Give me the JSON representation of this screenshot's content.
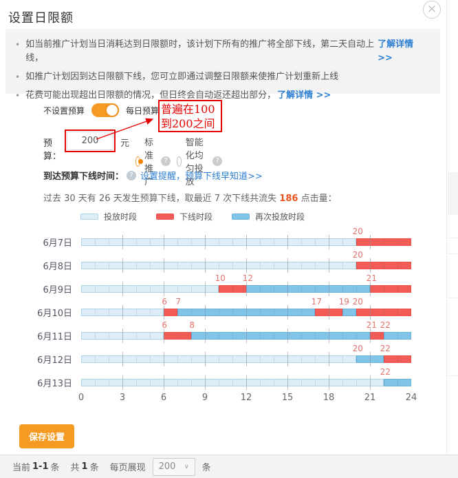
{
  "dialog": {
    "title": "设置日限额"
  },
  "close": {
    "glyph": "×"
  },
  "notice": {
    "items": [
      {
        "text": "如当前推广计划当日消耗达到日限额时，该计划下所有的推广将全部下线，第二天自动上线，",
        "link": "了解详情 >>"
      },
      {
        "text": "如推广计划因到达日限额下线，您可立即通过调整日限额来使推广计划重新上线",
        "link": ""
      },
      {
        "text": "花费可能出现超出日限额的情况，但日终会自动返还超出部分，",
        "link": "了解详情 >>"
      }
    ]
  },
  "budget_form": {
    "toggle_left_label": "不设置预算",
    "toggle_right_label": "每日预算",
    "budget_label": "预算：",
    "budget_value": "200",
    "budget_unit": "元",
    "radio_standard": "标准推广",
    "radio_smooth": "智能化均匀投放",
    "help_glyph": "?"
  },
  "annotation": {
    "line1": "普遍在100",
    "line2": "到200之间",
    "color": "#e60000"
  },
  "offline_row": {
    "label": "到达预算下线时间：",
    "help_glyph": "?",
    "link": "设置提醒，预算下线早知道>>"
  },
  "stats_row": {
    "before": "过去 30 天有 26 天发生预算下线，取最近 7 次下线共流失 ",
    "count": "186",
    "after": " 点击量："
  },
  "legend": [
    {
      "label": "投放时段",
      "type": "on"
    },
    {
      "label": "下线时段",
      "type": "off"
    },
    {
      "label": "再次投放时段",
      "type": "resume"
    }
  ],
  "chart_data": {
    "type": "timeline-bar",
    "x_axis": {
      "min": 0,
      "max": 24,
      "ticks": [
        0,
        3,
        6,
        9,
        12,
        15,
        18,
        21,
        24
      ],
      "unit": "hour"
    },
    "palette": {
      "on": {
        "fill": "#ddeef8",
        "border": "#aed3e6"
      },
      "off": {
        "fill": "#f15c56",
        "border": "#ee4f49"
      },
      "resume": {
        "fill": "#82c4e7",
        "border": "#69b4dc"
      }
    },
    "mark_label_color": "#e4736c",
    "rows": [
      {
        "date": "6月7日",
        "segments": [
          {
            "start": 0,
            "end": 20,
            "type": "on"
          },
          {
            "start": 20,
            "end": 24,
            "type": "off"
          }
        ],
        "marks": [
          20
        ]
      },
      {
        "date": "6月8日",
        "segments": [
          {
            "start": 0,
            "end": 20,
            "type": "on"
          },
          {
            "start": 20,
            "end": 24,
            "type": "off"
          }
        ],
        "marks": [
          20
        ]
      },
      {
        "date": "6月9日",
        "segments": [
          {
            "start": 0,
            "end": 10,
            "type": "on"
          },
          {
            "start": 10,
            "end": 12,
            "type": "off"
          },
          {
            "start": 12,
            "end": 21,
            "type": "resume"
          },
          {
            "start": 21,
            "end": 24,
            "type": "off"
          }
        ],
        "marks": [
          10,
          12,
          21
        ]
      },
      {
        "date": "6月10日",
        "segments": [
          {
            "start": 0,
            "end": 6,
            "type": "on"
          },
          {
            "start": 6,
            "end": 7,
            "type": "off"
          },
          {
            "start": 7,
            "end": 17,
            "type": "resume"
          },
          {
            "start": 17,
            "end": 19,
            "type": "off"
          },
          {
            "start": 19,
            "end": 20,
            "type": "resume"
          },
          {
            "start": 20,
            "end": 24,
            "type": "off"
          }
        ],
        "marks": [
          6,
          7,
          17,
          19,
          20
        ]
      },
      {
        "date": "6月11日",
        "segments": [
          {
            "start": 0,
            "end": 6,
            "type": "on"
          },
          {
            "start": 6,
            "end": 8,
            "type": "off"
          },
          {
            "start": 8,
            "end": 21,
            "type": "resume"
          },
          {
            "start": 21,
            "end": 22,
            "type": "off"
          },
          {
            "start": 22,
            "end": 24,
            "type": "resume"
          }
        ],
        "marks": [
          6,
          8,
          21,
          22
        ]
      },
      {
        "date": "6月12日",
        "segments": [
          {
            "start": 0,
            "end": 20,
            "type": "on"
          },
          {
            "start": 20,
            "end": 22,
            "type": "resume"
          },
          {
            "start": 22,
            "end": 24,
            "type": "off"
          }
        ],
        "marks": [
          20,
          22
        ]
      },
      {
        "date": "6月13日",
        "segments": [
          {
            "start": 0,
            "end": 22,
            "type": "on"
          },
          {
            "start": 22,
            "end": 24,
            "type": "resume"
          }
        ],
        "marks": [
          22
        ]
      }
    ]
  },
  "save_button": {
    "label": "保存设置"
  },
  "pagination": {
    "current_label": "当前",
    "current_range": "1-1",
    "unit1": "条",
    "total_label": "共",
    "total_value": "1",
    "unit2": "条",
    "per_page_label": "每页展现",
    "per_page_value": "200",
    "chevron": "∨",
    "unit3": "条"
  },
  "colors": {
    "accent_orange": "#f59a23",
    "link_blue": "#2d7fd4",
    "highlight_red": "#e60000",
    "loss_count_color": "#e8541e"
  }
}
